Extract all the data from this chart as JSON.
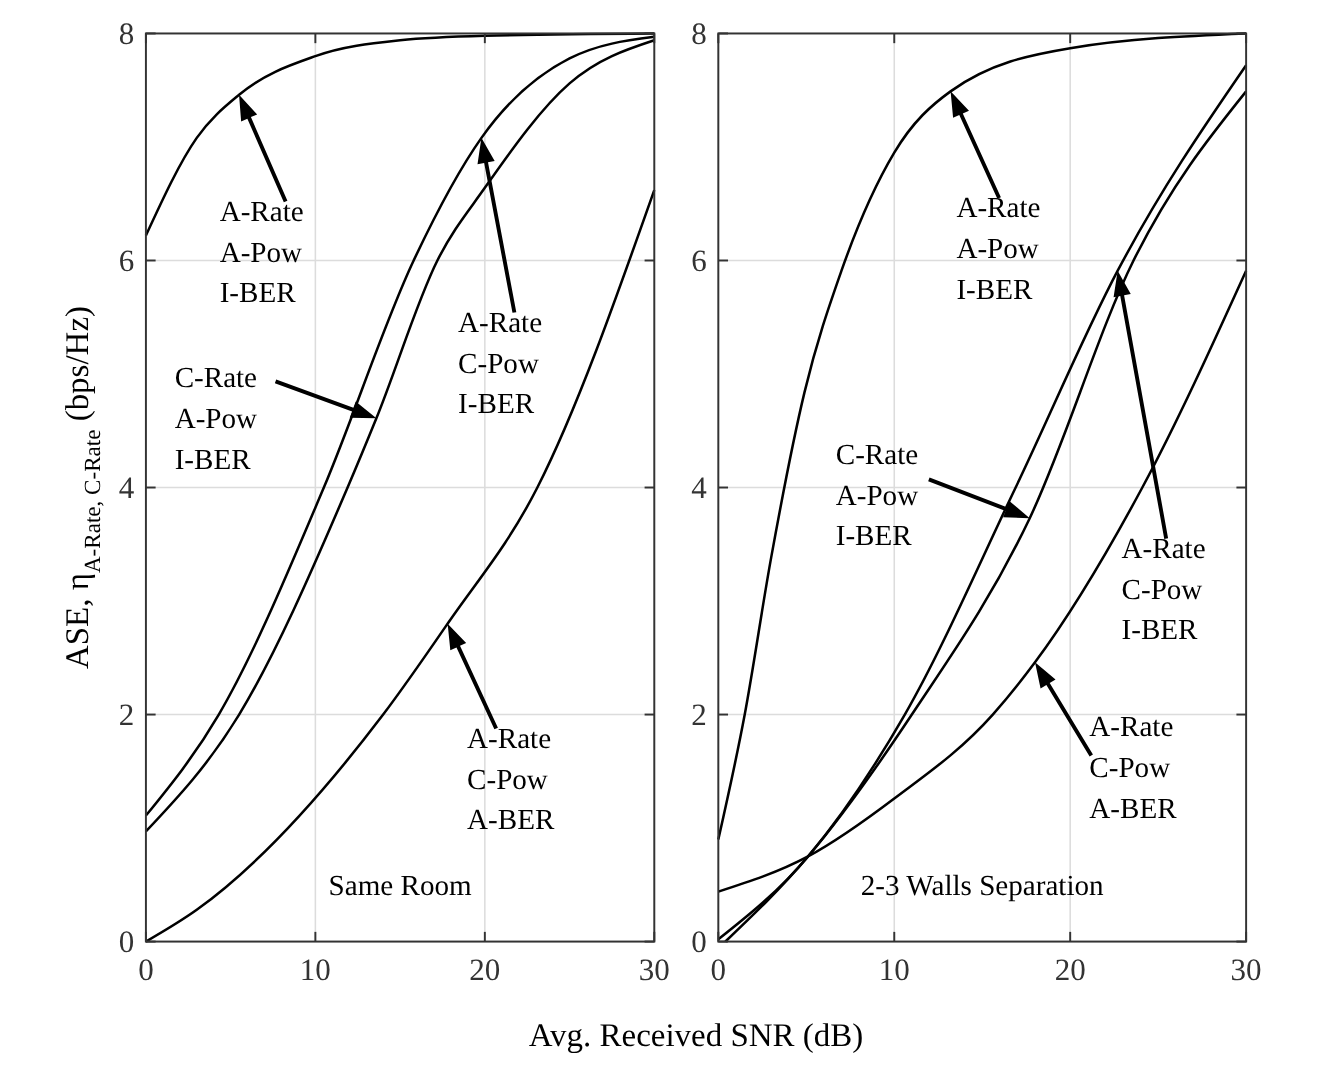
{
  "chart_data": [
    {
      "type": "line",
      "xlabel": "Avg. Received SNR (dB)",
      "ylabel": "ASE, η$_{A-Rate, C-Rate}$    (bps/Hz)",
      "xlim": [
        0,
        30
      ],
      "xticks": [
        0,
        10,
        20,
        30
      ],
      "ylim": [
        0,
        8
      ],
      "yticks": [
        0,
        2,
        4,
        6,
        8
      ],
      "grid": true,
      "line_style": "solid",
      "series": [
        {
          "color": "#000000",
          "x": [
            0,
            3,
            5.5,
            10,
            15,
            20,
            30
          ],
          "values": [
            6.22,
            7.08,
            7.46,
            7.8,
            7.94,
            7.98,
            8
          ]
        },
        {
          "color": "#000000",
          "x": [
            0,
            4.3,
            10.5,
            15.8,
            19.8,
            25,
            30
          ],
          "values": [
            1.11,
            2,
            4,
            6,
            7.08,
            7.78,
            7.97
          ]
        },
        {
          "color": "#000000",
          "x": [
            0,
            5.5,
            11.9,
            13.6,
            17.2,
            20,
            25,
            30
          ],
          "values": [
            0.97,
            2,
            4,
            4.61,
            6,
            6.64,
            7.56,
            7.94
          ]
        },
        {
          "color": "#000000",
          "x": [
            0,
            3,
            14,
            17.8,
            23.1,
            30
          ],
          "values": [
            0,
            0.28,
            2,
            2.8,
            4,
            6.62
          ]
        }
      ],
      "annotations": [
        "A-Rate\nA-Pow\nI-BER",
        "A-Rate\nC-Pow\nI-BER",
        "C-Rate\nA-Pow\nI-BER",
        "A-Rate\nC-Pow\nA-BER",
        "Same Room"
      ]
    },
    {
      "type": "line",
      "xlim": [
        0,
        30
      ],
      "xticks": [
        0,
        10,
        20,
        30
      ],
      "ylim": [
        0,
        8
      ],
      "yticks": [
        0,
        2,
        4,
        6,
        8
      ],
      "grid": true,
      "line_style": "solid",
      "series": [
        {
          "color": "#000000",
          "x": [
            0,
            1.5,
            3,
            4.9,
            7,
            10,
            13.2,
            20,
            30
          ],
          "values": [
            0.9,
            2,
            3.38,
            4.84,
            5.91,
            6.95,
            7.49,
            7.87,
            8
          ]
        },
        {
          "color": "#000000",
          "x": [
            0,
            5.1,
            10.6,
            16.9,
            22.7,
            30
          ],
          "values": [
            0.02,
            0.75,
            2,
            4,
            5.91,
            7.72
          ]
        },
        {
          "color": "#000000",
          "x": [
            0.4,
            5.1,
            11,
            17.7,
            23.6,
            30
          ],
          "values": [
            0,
            0.75,
            2,
            3.73,
            6,
            7.49
          ]
        },
        {
          "color": "#000000",
          "x": [
            0,
            5.1,
            10,
            15.6,
            18,
            24.1,
            30
          ],
          "values": [
            0.44,
            0.75,
            1.26,
            2,
            2.46,
            4,
            5.91
          ]
        }
      ],
      "annotations": [
        "A-Rate\nA-Pow\nI-BER",
        "A-Rate\nC-Pow\nI-BER",
        "C-Rate\nA-Pow\nI-BER",
        "A-Rate\nC-Pow\nA-BER",
        "2-3 Walls Separation"
      ]
    }
  ]
}
